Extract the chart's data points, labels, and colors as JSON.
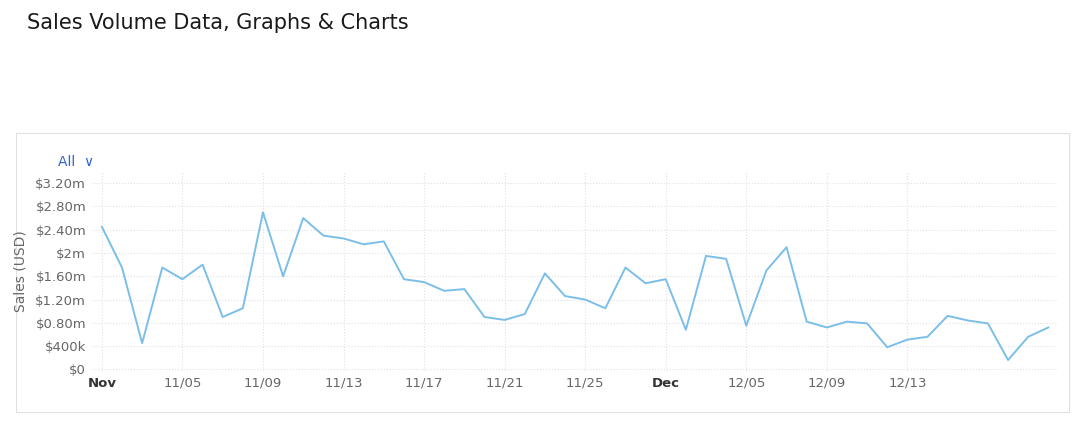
{
  "title": "Sales Volume Data, Graphs & Charts",
  "ylabel": "Sales (USD)",
  "background_color": "#f0f0f0",
  "chart_bg": "#ffffff",
  "outer_bg": "#ffffff",
  "line_color": "#7bbfe8",
  "grid_color": "#e0e0e8",
  "ytick_values": [
    0,
    400000,
    800000,
    1200000,
    1600000,
    2000000,
    2400000,
    2800000,
    3200000
  ],
  "xtick_labels": [
    "Nov",
    "11/05",
    "11/09",
    "11/13",
    "11/17",
    "11/21",
    "11/25",
    "Dec",
    "12/05",
    "12/09",
    "12/13"
  ],
  "xtick_positions": [
    0,
    4,
    8,
    12,
    16,
    20,
    24,
    28,
    32,
    36,
    40
  ],
  "data_y": [
    2450000,
    1750000,
    450000,
    1750000,
    1550000,
    1800000,
    900000,
    1050000,
    2700000,
    1600000,
    2600000,
    2300000,
    2250000,
    2150000,
    2200000,
    1550000,
    1500000,
    1350000,
    1380000,
    900000,
    850000,
    950000,
    1650000,
    1260000,
    1200000,
    1050000,
    1750000,
    1480000,
    1550000,
    680000,
    1950000,
    1900000,
    750000,
    1700000,
    2100000,
    820000,
    720000,
    820000,
    790000,
    380000,
    510000,
    560000,
    920000,
    840000,
    790000,
    160000,
    560000,
    720000
  ],
  "all_label_color": "#3366cc",
  "title_fontsize": 15,
  "axis_label_fontsize": 10,
  "tick_fontsize": 9.5,
  "panel_border_color": "#e0e0e0"
}
